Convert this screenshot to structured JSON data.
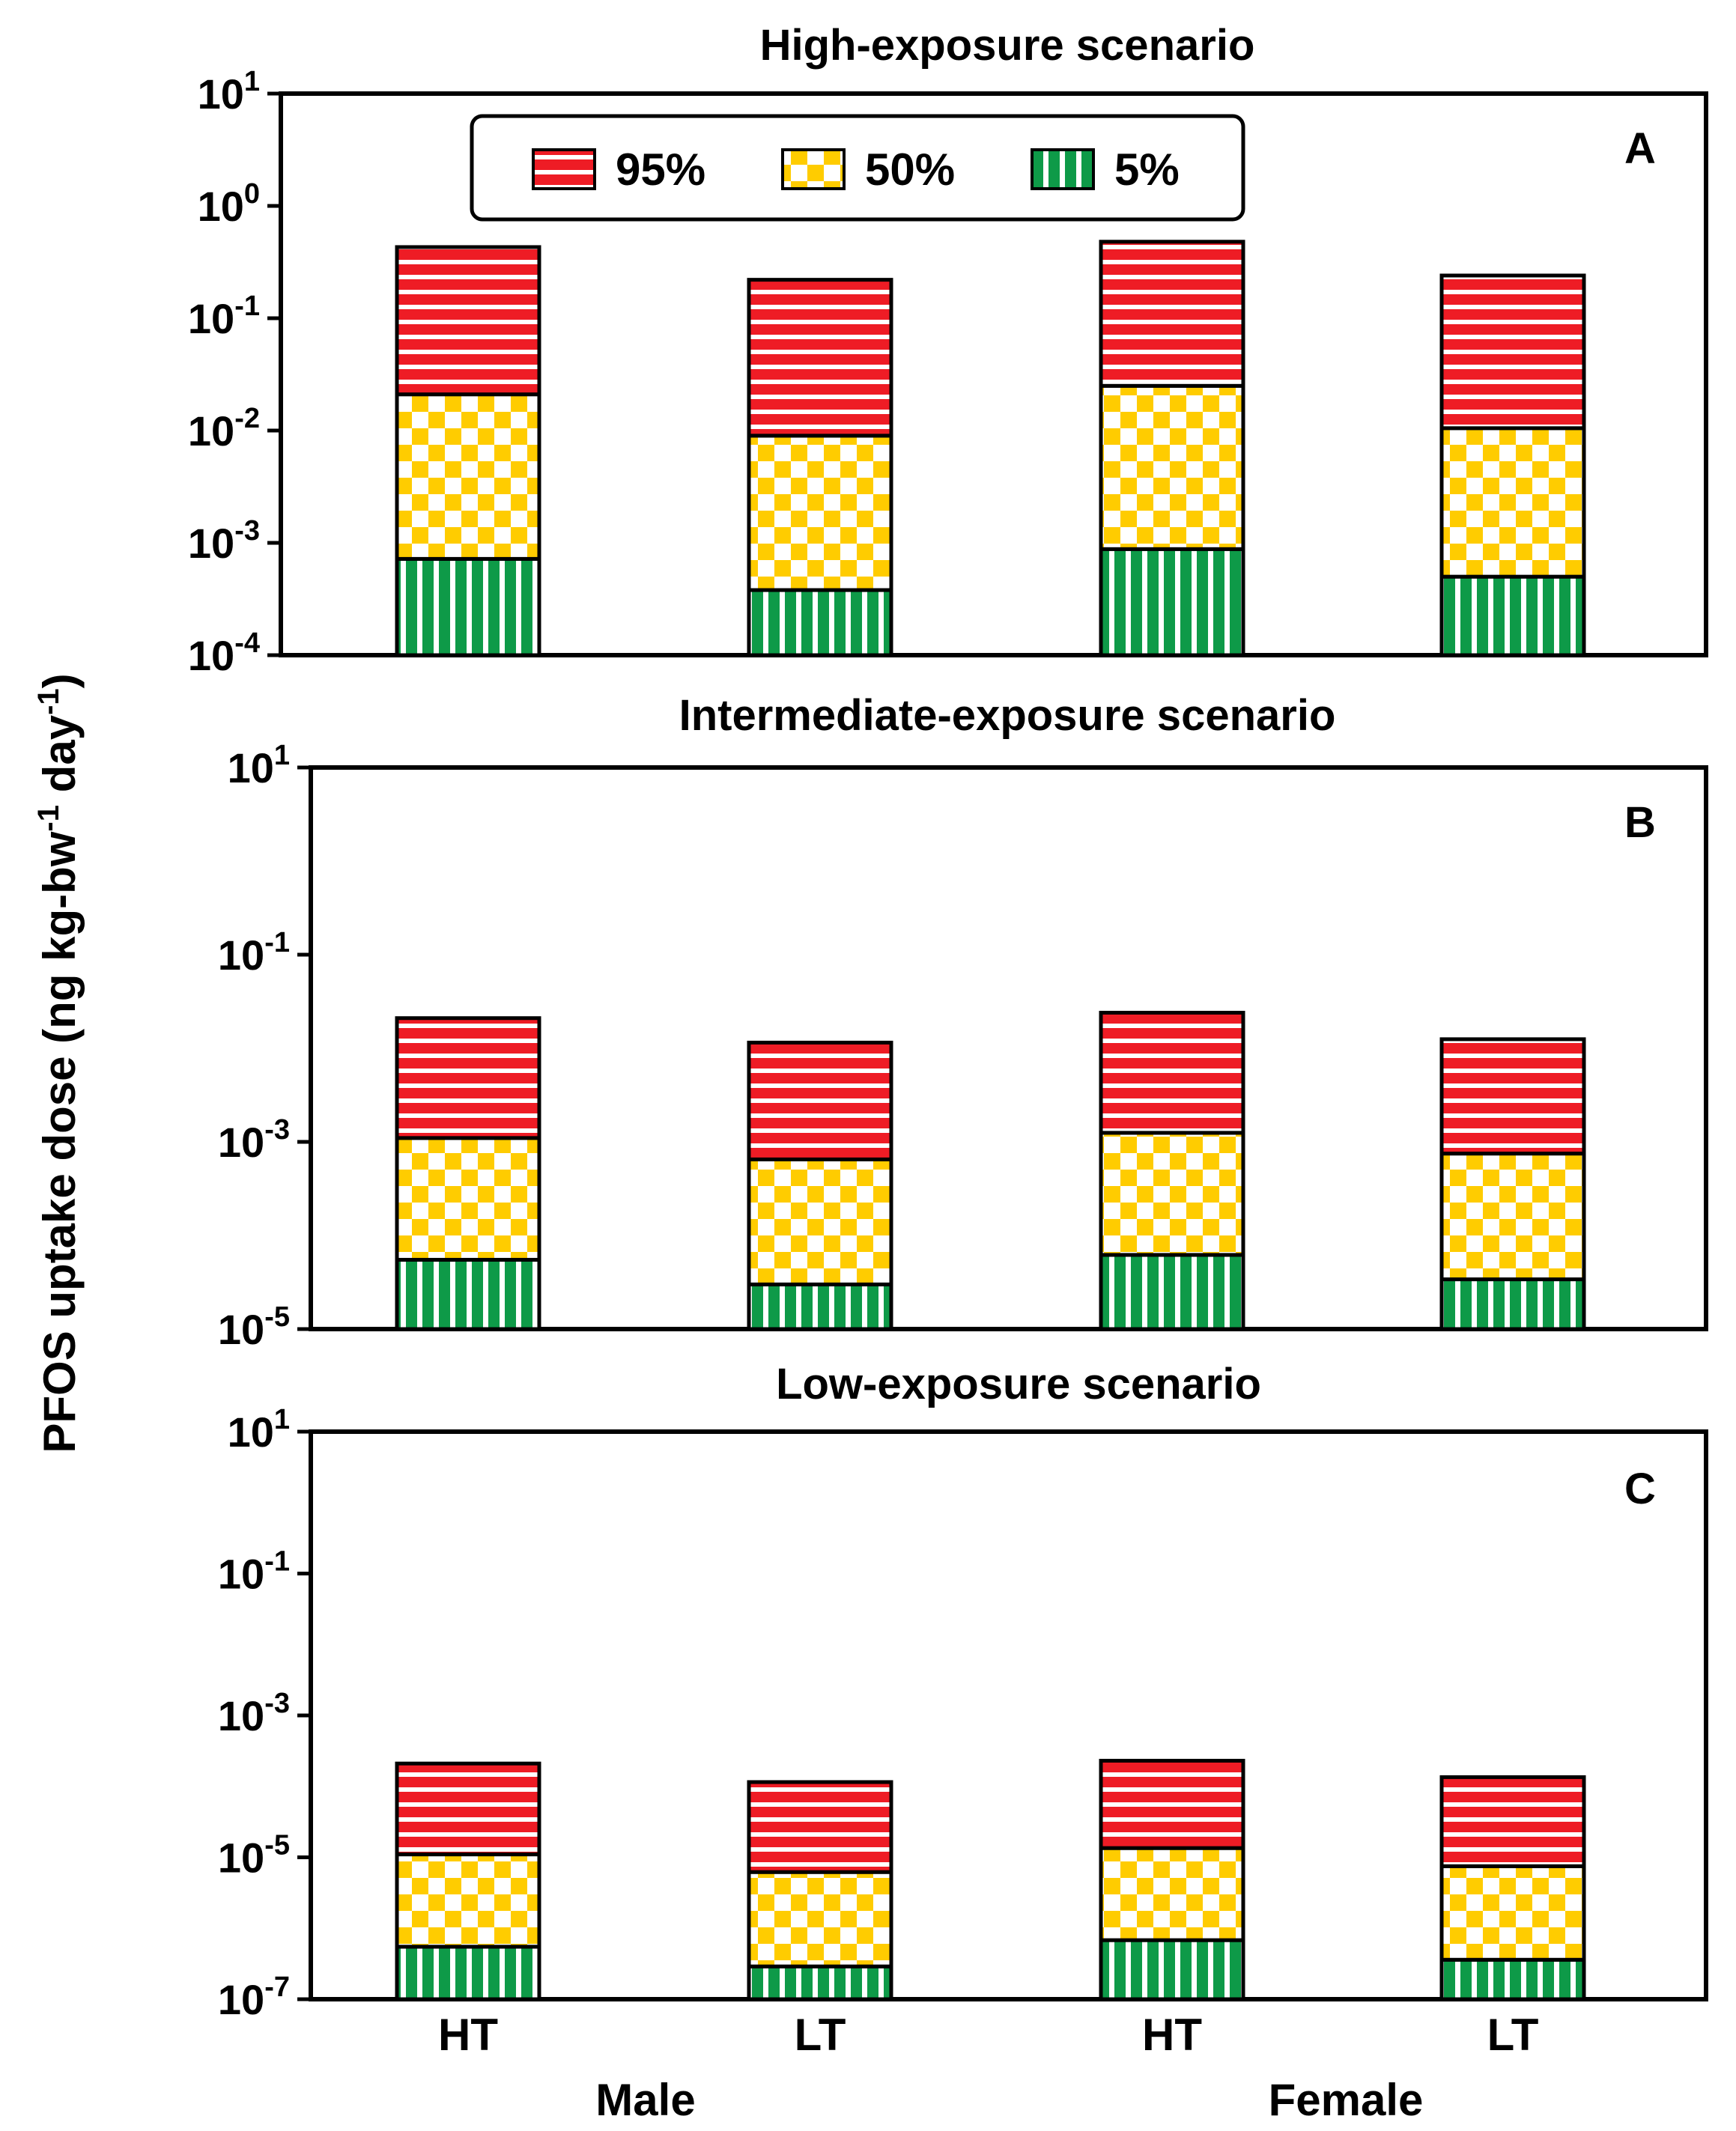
{
  "chart_data": [
    {
      "panel": "A",
      "type": "bar",
      "stacked": true,
      "y_scale": "log",
      "title": "High-exposure scenario",
      "ylabel": "PFOS uptake dose (ng kg-bw-1 day-1)",
      "ylim": [
        0.0001,
        10
      ],
      "yticks": [
        {
          "base": "10",
          "exp": "1"
        },
        {
          "base": "10",
          "exp": "0"
        },
        {
          "base": "10",
          "exp": "-1"
        },
        {
          "base": "10",
          "exp": "-2"
        },
        {
          "base": "10",
          "exp": "-3"
        },
        {
          "base": "10",
          "exp": "-4"
        }
      ],
      "ytick_values": [
        10,
        1,
        0.1,
        0.01,
        0.001,
        0.0001
      ],
      "categories": [
        "HT",
        "LT",
        "HT",
        "LT"
      ],
      "groups": [
        "Male",
        "Female"
      ],
      "legend": [
        "95%",
        "50%",
        "5%"
      ],
      "series": [
        {
          "name": "5%",
          "values": [
            0.00072,
            0.00038,
            0.00088,
            0.0005
          ]
        },
        {
          "name": "50%",
          "values": [
            0.021,
            0.009,
            0.025,
            0.0105
          ]
        },
        {
          "name": "95%",
          "values": [
            0.43,
            0.22,
            0.48,
            0.24
          ]
        }
      ]
    },
    {
      "panel": "B",
      "type": "bar",
      "stacked": true,
      "y_scale": "log",
      "title": "Intermediate-exposure scenario",
      "ylim": [
        1e-05,
        10
      ],
      "yticks": [
        {
          "base": "10",
          "exp": "1"
        },
        {
          "base": "10",
          "exp": "-1"
        },
        {
          "base": "10",
          "exp": "-3"
        },
        {
          "base": "10",
          "exp": "-5"
        }
      ],
      "ytick_values": [
        10,
        0.1,
        0.001,
        1e-05
      ],
      "categories": [
        "HT",
        "LT",
        "HT",
        "LT"
      ],
      "series": [
        {
          "name": "5%",
          "values": [
            5.5e-05,
            3e-05,
            6.2e-05,
            3.4e-05
          ]
        },
        {
          "name": "50%",
          "values": [
            0.0011,
            0.00065,
            0.00125,
            0.00075
          ]
        },
        {
          "name": "95%",
          "values": [
            0.021,
            0.0115,
            0.024,
            0.0125
          ]
        }
      ]
    },
    {
      "panel": "C",
      "type": "bar",
      "stacked": true,
      "y_scale": "log",
      "title": "Low-exposure scenario",
      "ylim": [
        1e-07,
        10
      ],
      "yticks": [
        {
          "base": "10",
          "exp": "1"
        },
        {
          "base": "10",
          "exp": "-1"
        },
        {
          "base": "10",
          "exp": "-3"
        },
        {
          "base": "10",
          "exp": "-5"
        },
        {
          "base": "10",
          "exp": "-7"
        }
      ],
      "ytick_values": [
        10,
        0.1,
        0.001,
        1e-05,
        1e-07
      ],
      "categories": [
        "HT",
        "LT",
        "HT",
        "LT"
      ],
      "series": [
        {
          "name": "5%",
          "values": [
            5.5e-07,
            2.9e-07,
            6.8e-07,
            3.6e-07
          ]
        },
        {
          "name": "50%",
          "values": [
            1.1e-05,
            6.2e-06,
            1.35e-05,
            7.5e-06
          ]
        },
        {
          "name": "95%",
          "values": [
            0.00021,
            0.000115,
            0.00023,
            0.000135
          ]
        }
      ]
    }
  ],
  "colors": {
    "p95_fill": "#ee1c25",
    "p95_stripe": "#ffffff",
    "p50_fill": "#ffcc00",
    "p50_check": "#ffffff",
    "p5_fill": "#0e9a48",
    "p5_stripe": "#ffffff",
    "outline": "#000000"
  }
}
